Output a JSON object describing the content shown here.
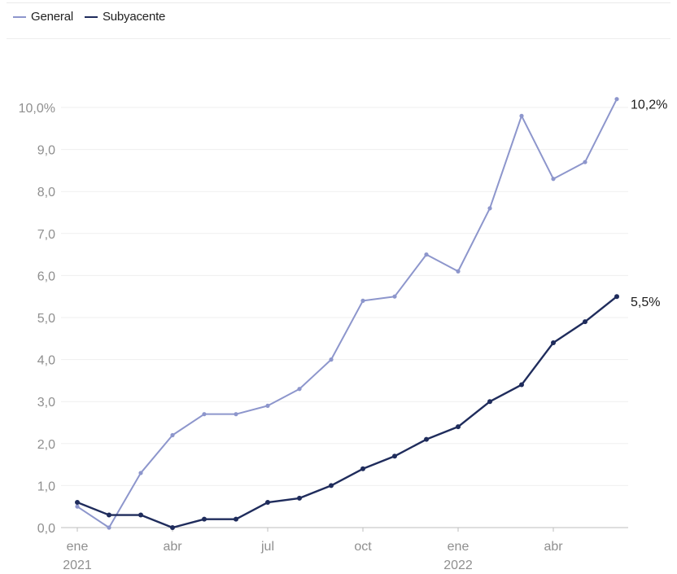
{
  "legend": [
    {
      "name": "General",
      "color": "#8d96cc"
    },
    {
      "name": "Subyacente",
      "color": "#1f2c5c"
    }
  ],
  "chart_data": {
    "type": "line",
    "x": [
      "2021-01",
      "2021-02",
      "2021-03",
      "2021-04",
      "2021-05",
      "2021-06",
      "2021-07",
      "2021-08",
      "2021-09",
      "2021-10",
      "2021-11",
      "2021-12",
      "2022-01",
      "2022-02",
      "2022-03",
      "2022-04",
      "2022-05",
      "2022-06"
    ],
    "series": [
      {
        "name": "General",
        "color": "#8d96cc",
        "values": [
          0.5,
          0.0,
          1.3,
          2.2,
          2.7,
          2.7,
          2.9,
          3.3,
          4.0,
          5.4,
          5.5,
          6.5,
          6.1,
          7.6,
          9.8,
          8.3,
          8.7,
          10.2
        ],
        "end_label": "10,2%"
      },
      {
        "name": "Subyacente",
        "color": "#1f2c5c",
        "values": [
          0.6,
          0.3,
          0.3,
          0.0,
          0.2,
          0.2,
          0.6,
          0.7,
          1.0,
          1.4,
          1.7,
          2.1,
          2.4,
          3.0,
          3.4,
          4.4,
          4.9,
          5.5
        ],
        "end_label": "5,5%"
      }
    ],
    "y_ticks": [
      {
        "value": 0,
        "label": "0,0"
      },
      {
        "value": 1,
        "label": "1,0"
      },
      {
        "value": 2,
        "label": "2,0"
      },
      {
        "value": 3,
        "label": "3,0"
      },
      {
        "value": 4,
        "label": "4,0"
      },
      {
        "value": 5,
        "label": "5,0"
      },
      {
        "value": 6,
        "label": "6,0"
      },
      {
        "value": 7,
        "label": "7,0"
      },
      {
        "value": 8,
        "label": "8,0"
      },
      {
        "value": 9,
        "label": "9,0"
      },
      {
        "value": 10,
        "label": "10,0%"
      }
    ],
    "x_ticks": [
      {
        "index": 0,
        "label": "ene",
        "year": "2021"
      },
      {
        "index": 3,
        "label": "abr",
        "year": ""
      },
      {
        "index": 6,
        "label": "jul",
        "year": ""
      },
      {
        "index": 9,
        "label": "oct",
        "year": ""
      },
      {
        "index": 12,
        "label": "ene",
        "year": "2022"
      },
      {
        "index": 15,
        "label": "abr",
        "year": ""
      }
    ],
    "ylim": [
      0,
      10.2
    ],
    "grid": true,
    "legend_position": "top-left",
    "title": "",
    "xlabel": "",
    "ylabel": ""
  }
}
